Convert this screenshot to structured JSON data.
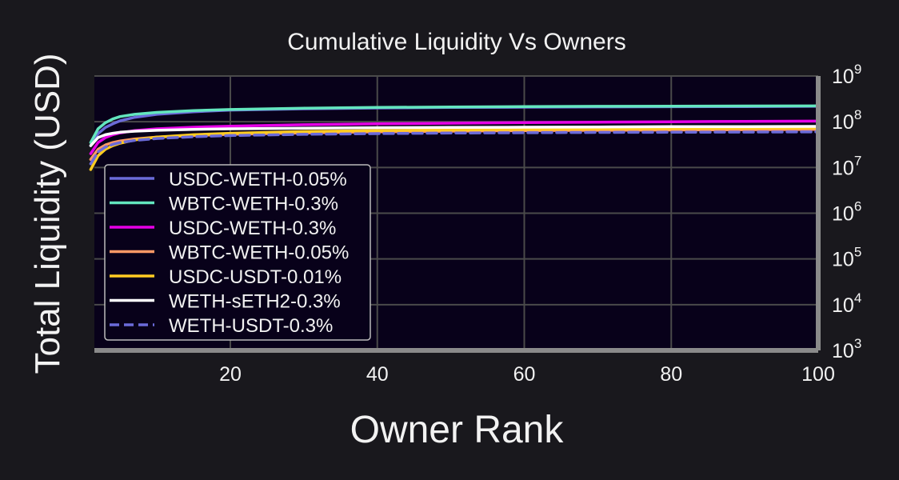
{
  "chart_data": {
    "type": "line",
    "title": "Cumulative Liquidity Vs Owners",
    "xlabel": "Owner Rank",
    "ylabel": "Total Liquidity (USD)",
    "xlim": [
      1,
      100
    ],
    "ylim": [
      1000,
      1000000000
    ],
    "yscale": "log",
    "x_ticks": [
      "20",
      "40",
      "60",
      "80",
      "100"
    ],
    "y_ticks": [
      {
        "base": "10",
        "exp": "3"
      },
      {
        "base": "10",
        "exp": "4"
      },
      {
        "base": "10",
        "exp": "5"
      },
      {
        "base": "10",
        "exp": "6"
      },
      {
        "base": "10",
        "exp": "7"
      },
      {
        "base": "10",
        "exp": "8"
      },
      {
        "base": "10",
        "exp": "9"
      }
    ],
    "y_axis_side": "right",
    "grid": true,
    "legend_position": "lower-left",
    "background_color": "#19181d",
    "plot_background_color": "#08011a",
    "x": [
      1,
      2,
      3,
      4,
      5,
      7,
      10,
      15,
      20,
      30,
      40,
      50,
      60,
      70,
      80,
      90,
      100
    ],
    "series": [
      {
        "name": "USDC-WETH-0.05%",
        "color": "#6b6bd9",
        "dash": false,
        "values": [
          30000000,
          55000000,
          75000000,
          90000000,
          105000000,
          125000000,
          145000000,
          165000000,
          180000000,
          192000000,
          200000000,
          205000000,
          208000000,
          211000000,
          213000000,
          215000000,
          217000000
        ]
      },
      {
        "name": "WBTC-WETH-0.3%",
        "color": "#63e6be",
        "dash": false,
        "values": [
          35000000,
          70000000,
          95000000,
          115000000,
          130000000,
          145000000,
          160000000,
          175000000,
          185000000,
          198000000,
          205000000,
          210000000,
          214000000,
          217000000,
          219000000,
          221000000,
          223000000
        ]
      },
      {
        "name": "USDC-WETH-0.3%",
        "color": "#e600e6",
        "dash": false,
        "values": [
          20000000,
          35000000,
          45000000,
          52000000,
          57000000,
          64000000,
          70000000,
          76000000,
          80000000,
          86000000,
          90000000,
          93000000,
          96000000,
          98000000,
          100000000,
          102000000,
          103000000
        ]
      },
      {
        "name": "WBTC-WETH-0.05%",
        "color": "#ff9966",
        "dash": false,
        "values": [
          15000000,
          25000000,
          31000000,
          35000000,
          38000000,
          42000000,
          46000000,
          50000000,
          53000000,
          57000000,
          60000000,
          62000000,
          64000000,
          65000000,
          66000000,
          67000000,
          68000000
        ]
      },
      {
        "name": "USDC-USDT-0.01%",
        "color": "#ffcc22",
        "dash": false,
        "values": [
          9000000,
          18000000,
          25000000,
          30000000,
          34000000,
          40000000,
          46000000,
          52000000,
          56000000,
          61000000,
          64000000,
          66000000,
          68000000,
          69500000,
          71000000,
          72000000,
          73000000
        ]
      },
      {
        "name": "WETH-sETH2-0.3%",
        "color": "#ffffff",
        "dash": false,
        "values": [
          30000000,
          45000000,
          52000000,
          56000000,
          59000000,
          62000000,
          65000000,
          68000000,
          70000000,
          72000000,
          74000000,
          75000000,
          76000000,
          77000000,
          78000000,
          78500000,
          79000000
        ]
      },
      {
        "name": "WETH-USDT-0.3%",
        "color": "#6b6bd9",
        "dash": true,
        "values": [
          12000000,
          22000000,
          28000000,
          32000000,
          35000000,
          39000000,
          43000000,
          47000000,
          50000000,
          53000000,
          55000000,
          56500000,
          57500000,
          58500000,
          59000000,
          59500000,
          60000000
        ]
      }
    ]
  }
}
